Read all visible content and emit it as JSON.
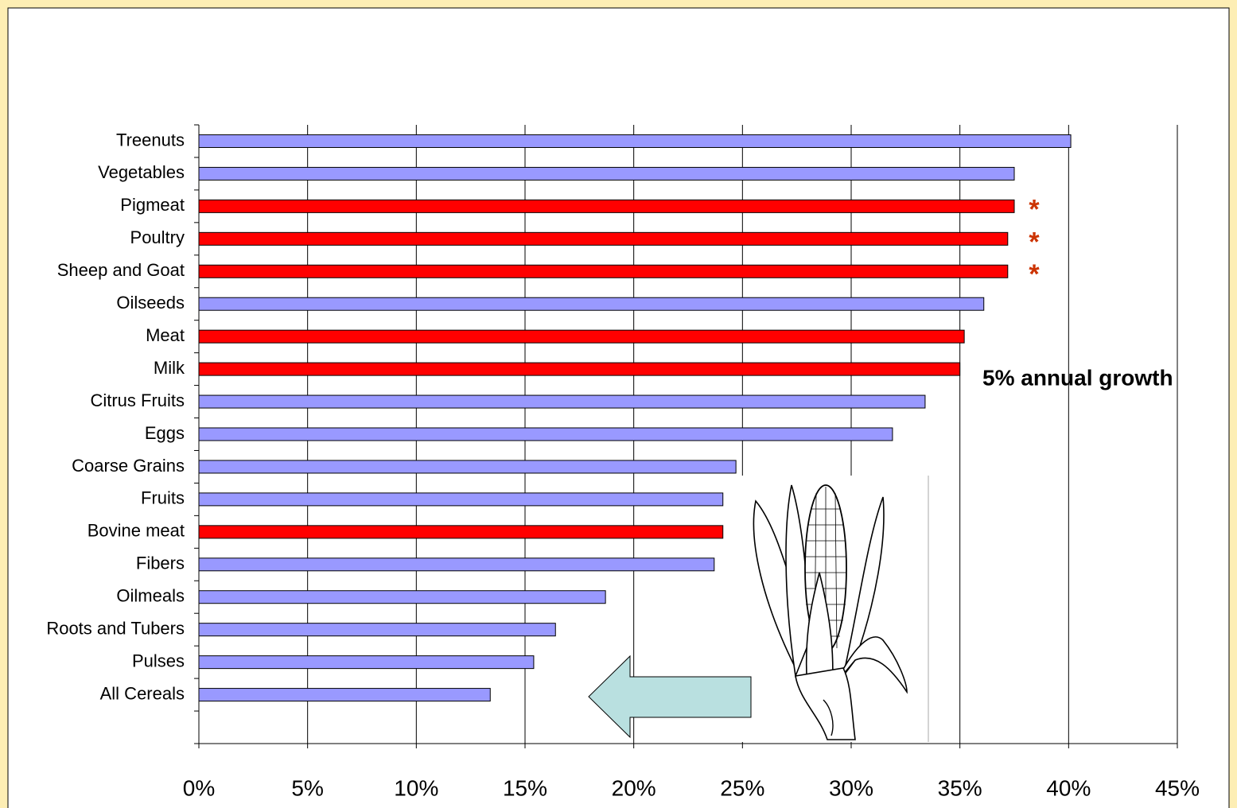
{
  "chart_data": {
    "type": "hbar",
    "categories": [
      "Treenuts",
      "Vegetables",
      "Pigmeat",
      "Poultry",
      "Sheep and Goat",
      "Oilseeds",
      "Meat",
      "Milk",
      "Citrus Fruits",
      "Eggs",
      "Coarse Grains",
      "Fruits",
      "Bovine meat",
      "Fibers",
      "Oilmeals",
      "Roots and Tubers",
      "Pulses",
      "All Cereals",
      null
    ],
    "values": [
      40.1,
      37.5,
      37.5,
      37.2,
      37.2,
      36.1,
      35.2,
      35.0,
      33.4,
      31.9,
      24.7,
      24.1,
      24.1,
      23.7,
      18.7,
      16.4,
      15.4,
      13.4,
      null
    ],
    "colors": [
      "#9999ff",
      "#9999ff",
      "#ff0000",
      "#ff0000",
      "#ff0000",
      "#9999ff",
      "#ff0000",
      "#ff0000",
      "#9999ff",
      "#9999ff",
      "#9999ff",
      "#9999ff",
      "#ff0000",
      "#9999ff",
      "#9999ff",
      "#9999ff",
      "#9999ff",
      "#9999ff",
      null
    ],
    "xlim": [
      0,
      45
    ],
    "xticks": [
      {
        "value": 0,
        "label": "0%"
      },
      {
        "value": 5,
        "label": "5%"
      },
      {
        "value": 10,
        "label": "10%"
      },
      {
        "value": 15,
        "label": "15%"
      },
      {
        "value": 20,
        "label": "20%"
      },
      {
        "value": 25,
        "label": "25%"
      },
      {
        "value": 30,
        "label": "30%"
      },
      {
        "value": 35,
        "label": "35%"
      },
      {
        "value": 40,
        "label": "40%"
      },
      {
        "value": 45,
        "label": "45%"
      }
    ],
    "grid": true,
    "annotations": {
      "growth": "5% annual growth",
      "asterisks": [
        "*",
        "*",
        "*"
      ]
    }
  }
}
